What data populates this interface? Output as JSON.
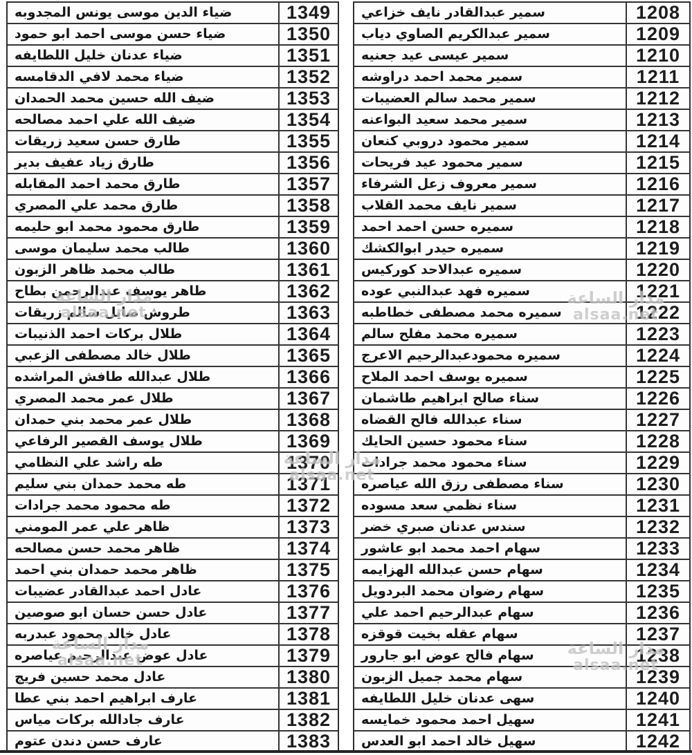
{
  "watermark": {
    "line1": "مدار الساعة",
    "line2": "alsaa.net"
  },
  "colors": {
    "text": "#161616",
    "border": "#343434",
    "watermark": "#c3c3c3",
    "background": "#ffffff"
  },
  "left_table": {
    "rows": [
      {
        "name": "ضياء الدين موسى يونس المجدوبه",
        "number": "1349"
      },
      {
        "name": "ضياء حسن موسى احمد ابو حمود",
        "number": "1350"
      },
      {
        "name": "ضياء عدنان خليل اللطايفه",
        "number": "1351"
      },
      {
        "name": "ضياء محمد لافي الدقامسه",
        "number": "1352"
      },
      {
        "name": "ضيف الله حسين محمد الحمدان",
        "number": "1353"
      },
      {
        "name": "ضيف الله علي احمد مصالحه",
        "number": "1354"
      },
      {
        "name": "طارق حسن سعيد زريقات",
        "number": "1355"
      },
      {
        "name": "طارق زياد عفيف بدير",
        "number": "1356"
      },
      {
        "name": "طارق محمد احمد المقابله",
        "number": "1357"
      },
      {
        "name": "طارق محمد علي المصري",
        "number": "1358"
      },
      {
        "name": "طارق محمود محمد ابو حليمه",
        "number": "1359"
      },
      {
        "name": "طالب محمد سليمان موسى",
        "number": "1360"
      },
      {
        "name": "طالب محمد ظاهر الزبون",
        "number": "1361"
      },
      {
        "name": "طاهر يوسف عبدالرحمن بطاح",
        "number": "1362"
      },
      {
        "name": "طروش صايل سالم زريقات",
        "number": "1363"
      },
      {
        "name": "طلال بركات احمد الذنيبات",
        "number": "1364"
      },
      {
        "name": "طلال خالد مصطفى الزعبي",
        "number": "1365"
      },
      {
        "name": "طلال عبدالله طافش المراشده",
        "number": "1366"
      },
      {
        "name": "طلال عمر محمد المصري",
        "number": "1367"
      },
      {
        "name": "طلال عمر محمد بني حمدان",
        "number": "1368"
      },
      {
        "name": "طلال يوسف القصير الرفاعي",
        "number": "1369"
      },
      {
        "name": "طه راشد علي النظامي",
        "number": "1370"
      },
      {
        "name": "طه محمد حمدان بني سليم",
        "number": "1371"
      },
      {
        "name": "طه محمود محمد جرادات",
        "number": "1372"
      },
      {
        "name": "ظاهر علي عمر المومني",
        "number": "1373"
      },
      {
        "name": "ظاهر محمد حسن مصالحه",
        "number": "1374"
      },
      {
        "name": "ظاهر محمد حمدان بني احمد",
        "number": "1375"
      },
      {
        "name": "عادل احمد عبدالقادر عضيبات",
        "number": "1376"
      },
      {
        "name": "عادل حسن حسان ابو صوصين",
        "number": "1377"
      },
      {
        "name": "عادل خالد محمود عبدربه",
        "number": "1378"
      },
      {
        "name": "عادل عوض عبدالرحيم عياصره",
        "number": "1379"
      },
      {
        "name": "عادل محمد حسين فريج",
        "number": "1380"
      },
      {
        "name": "عارف ابراهيم احمد بني عطا",
        "number": "1381"
      },
      {
        "name": "عارف جادالله بركات مياس",
        "number": "1382"
      },
      {
        "name": "عارف حسن دندن عتوم",
        "number": "1383"
      }
    ]
  },
  "right_table": {
    "rows": [
      {
        "name": "سمير عبدالقادر نايف خزاعي",
        "number": "1208"
      },
      {
        "name": "سمير عبدالكريم الصاوي دياب",
        "number": "1209"
      },
      {
        "name": "سمير عيسى عيد جعنيه",
        "number": "1210"
      },
      {
        "name": "سمير محمد احمد دراوشه",
        "number": "1211"
      },
      {
        "name": "سمير محمد سالم العضيبات",
        "number": "1212"
      },
      {
        "name": "سمير محمد سعيد البواعنه",
        "number": "1213"
      },
      {
        "name": "سمير محمود دروبي كنعان",
        "number": "1214"
      },
      {
        "name": "سمير محمود عيد فريحات",
        "number": "1215"
      },
      {
        "name": "سمير معروف زعل الشرفاء",
        "number": "1216"
      },
      {
        "name": "سمير نايف محمد القلاب",
        "number": "1217"
      },
      {
        "name": "سميره حسن احمد احمد",
        "number": "1218"
      },
      {
        "name": "سميره حيدر ابوالكشك",
        "number": "1219"
      },
      {
        "name": "سميره عبدالاحد كوركيس",
        "number": "1220"
      },
      {
        "name": "سميره فهد عبدالنبي عوده",
        "number": "1221"
      },
      {
        "name": "سميره محمد مصطفى خطاطبه",
        "number": "1222"
      },
      {
        "name": "سميره محمد مفلح سالم",
        "number": "1223"
      },
      {
        "name": "سميره محمودعبدالرحيم الاعرج",
        "number": "1224"
      },
      {
        "name": "سميره يوسف احمد الملاح",
        "number": "1225"
      },
      {
        "name": "سناء صالح ابراهيم طاشمان",
        "number": "1226"
      },
      {
        "name": "سناء عبدالله فالح القضاه",
        "number": "1227"
      },
      {
        "name": "سناء محمود حسين الحايك",
        "number": "1228"
      },
      {
        "name": "سناء محمود محمد جرادات",
        "number": "1229"
      },
      {
        "name": "سناء مصطفى رزق الله عياصره",
        "number": "1230"
      },
      {
        "name": "سناء نظمي سعد مسوده",
        "number": "1231"
      },
      {
        "name": "سندس عدنان صبري خضر",
        "number": "1232"
      },
      {
        "name": "سهام احمد محمد ابو عاشور",
        "number": "1233"
      },
      {
        "name": "سهام حسن عبدالله الهزايمه",
        "number": "1234"
      },
      {
        "name": "سهام رضوان محمد البردويل",
        "number": "1235"
      },
      {
        "name": "سهام عبدالرحيم احمد علي",
        "number": "1236"
      },
      {
        "name": "سهام عقله بخيت قوقزه",
        "number": "1237"
      },
      {
        "name": "سهام فالح عوض ابو جارور",
        "number": "1238"
      },
      {
        "name": "سهام محمد جميل الزبون",
        "number": "1239"
      },
      {
        "name": "سهى عدنان خليل اللطايفه",
        "number": "1240"
      },
      {
        "name": "سهيل احمد محمود خمايسه",
        "number": "1241"
      },
      {
        "name": "سهيل خالد احمد ابو العدس",
        "number": "1242"
      }
    ]
  }
}
